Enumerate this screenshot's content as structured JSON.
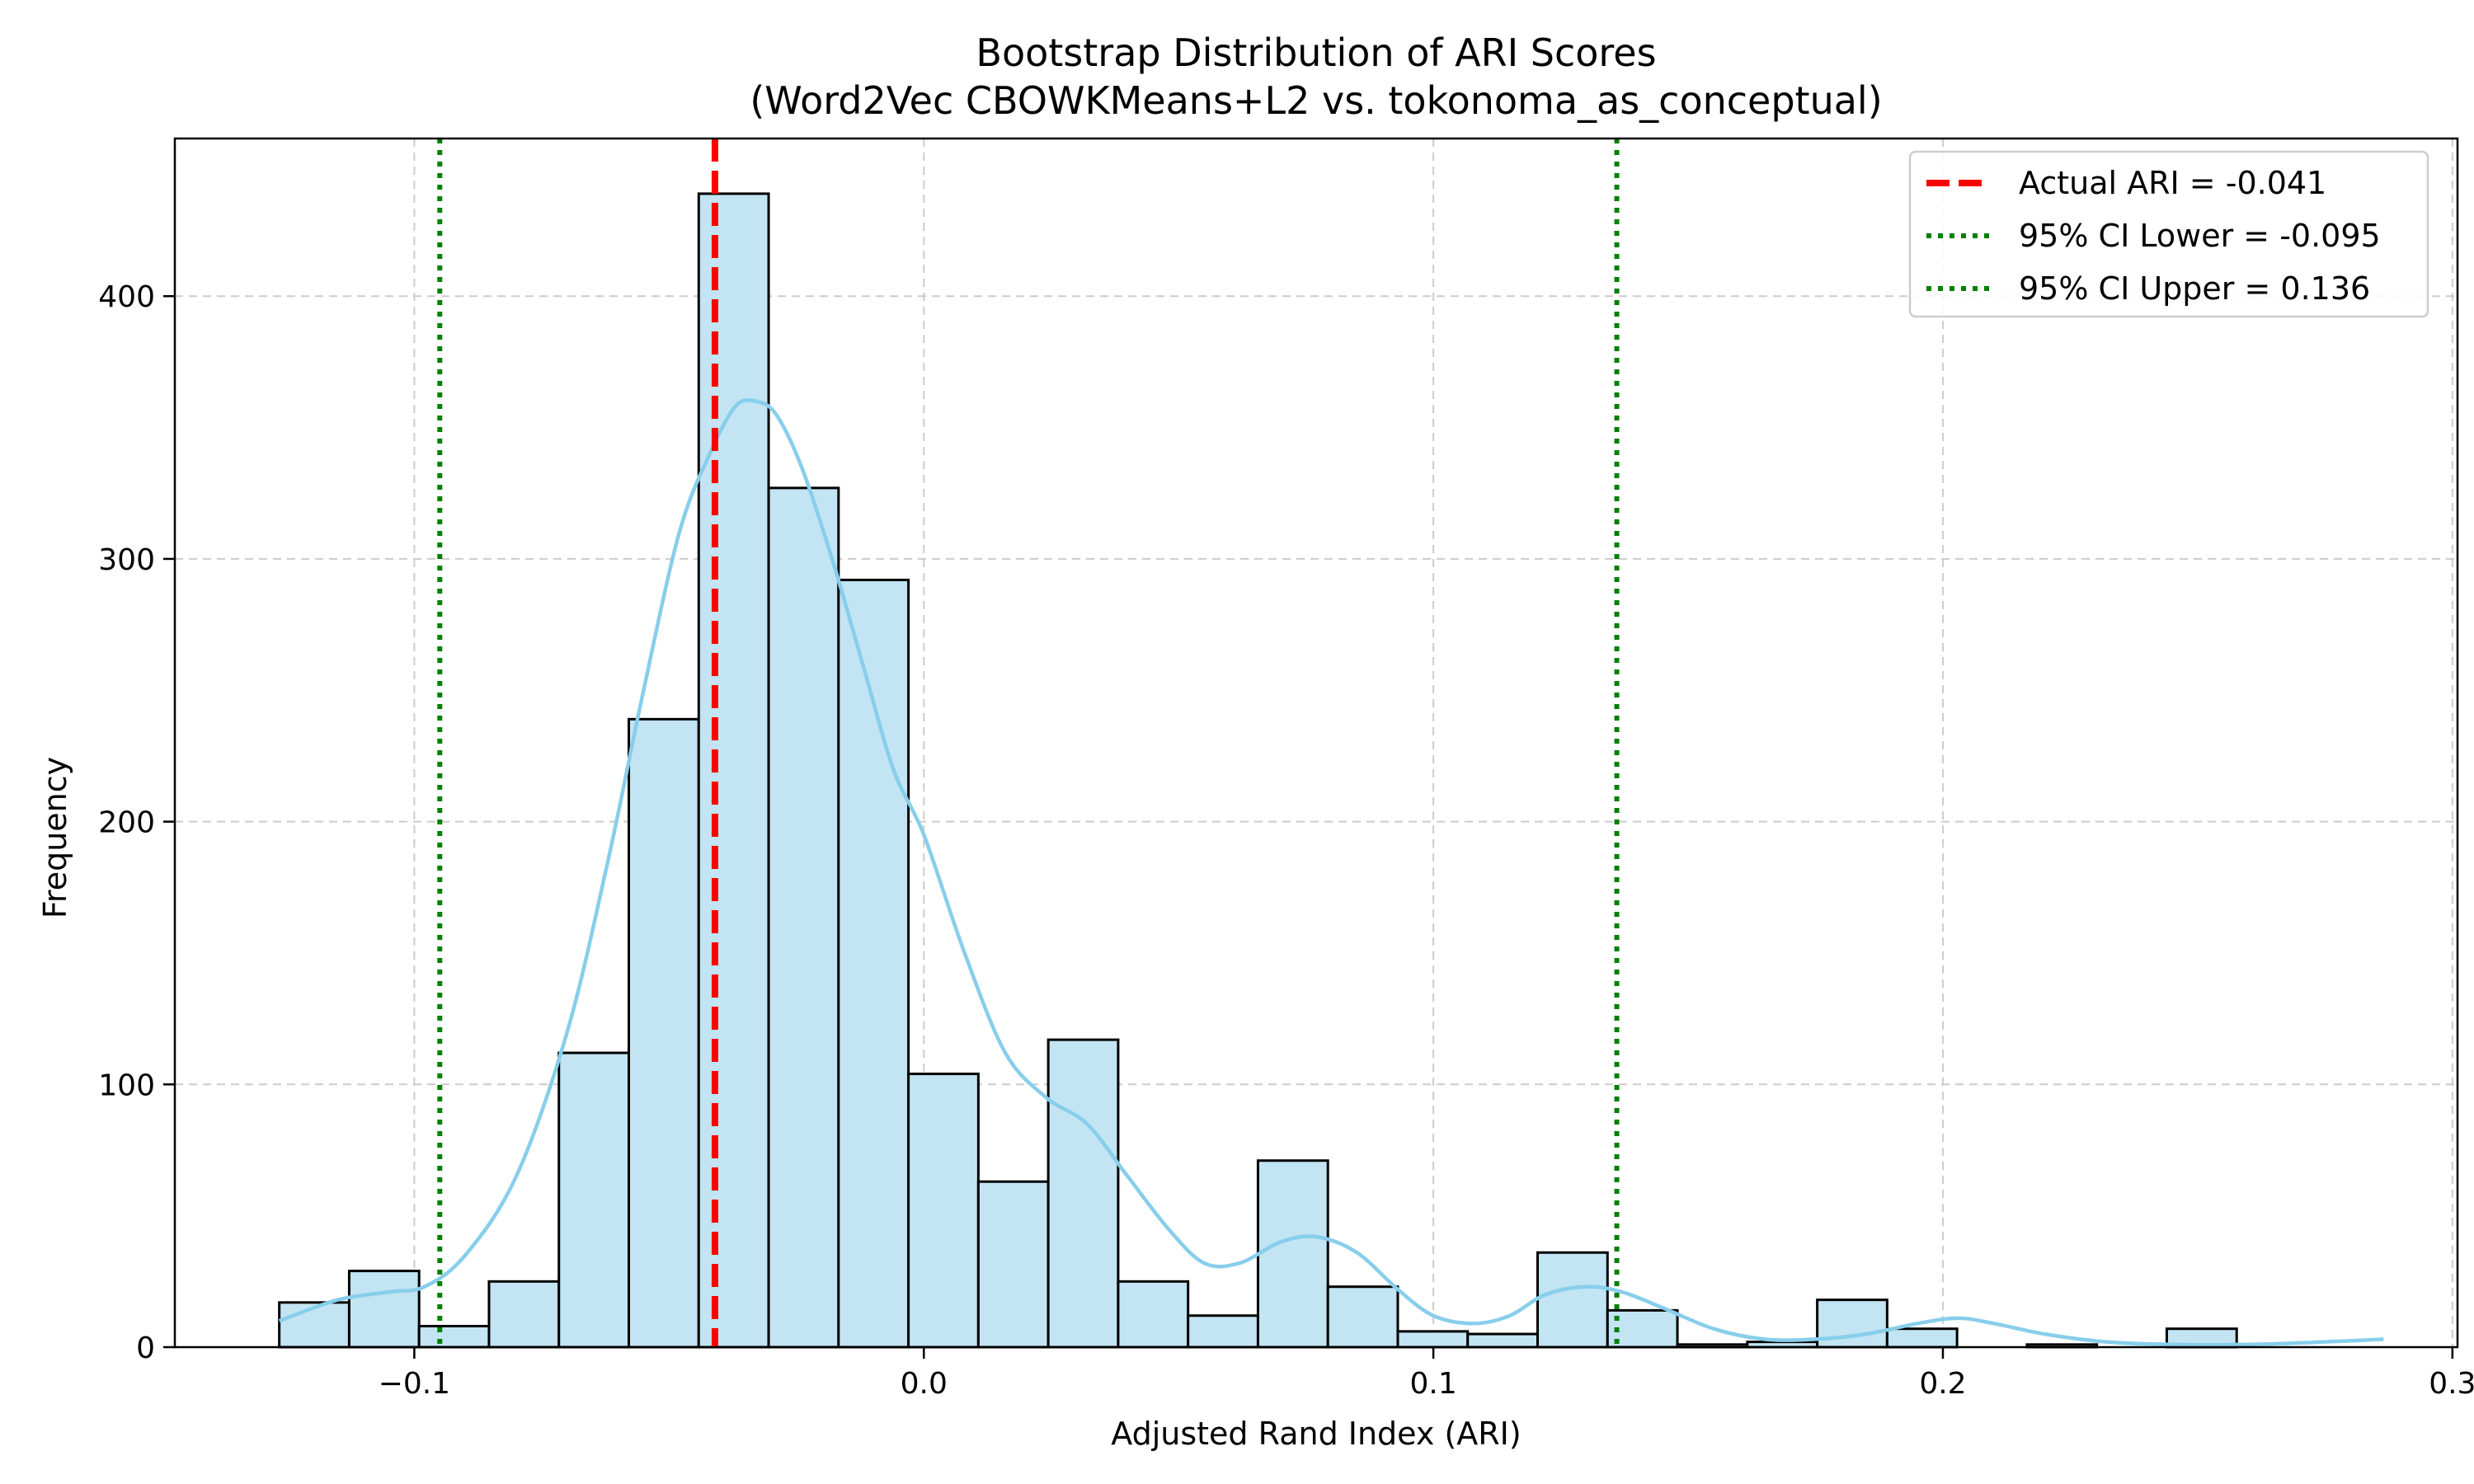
{
  "chart_data": {
    "type": "bar",
    "title": "Bootstrap Distribution of ARI Scores",
    "subtitle": "(Word2Vec CBOWKMeans+L2 vs. tokonoma_as_conceptual)",
    "xlabel": "Adjusted Rand Index (ARI)",
    "ylabel": "Frequency",
    "xlim": [
      -0.147,
      0.301
    ],
    "ylim": [
      0,
      460
    ],
    "xticks": [
      -0.1,
      0.0,
      0.1,
      0.2,
      0.3
    ],
    "xtick_labels": [
      "−0.1",
      "0.0",
      "0.1",
      "0.2",
      "0.3"
    ],
    "yticks": [
      0,
      100,
      200,
      300,
      400
    ],
    "ytick_labels": [
      "0",
      "100",
      "200",
      "300",
      "400"
    ],
    "grid": true,
    "legend_position": "top-right",
    "bins": {
      "start": -0.1265,
      "width": 0.01372,
      "counts": [
        17,
        29,
        8,
        25,
        112,
        239,
        439,
        327,
        292,
        104,
        63,
        117,
        25,
        12,
        71,
        23,
        6,
        5,
        36,
        14,
        1,
        2,
        18,
        7,
        0,
        1,
        0,
        7
      ]
    },
    "kde": {
      "x": [
        -0.1265,
        -0.115,
        -0.105,
        -0.098,
        -0.09,
        -0.08,
        -0.07,
        -0.062,
        -0.055,
        -0.048,
        -0.042,
        -0.037,
        -0.033,
        -0.029,
        -0.024,
        -0.018,
        -0.012,
        -0.006,
        0.0,
        0.008,
        0.016,
        0.024,
        0.032,
        0.04,
        0.048,
        0.055,
        0.062,
        0.07,
        0.077,
        0.085,
        0.093,
        0.1,
        0.108,
        0.115,
        0.122,
        0.13,
        0.137,
        0.145,
        0.155,
        0.165,
        0.175,
        0.185,
        0.195,
        0.203,
        0.21,
        0.22,
        0.232,
        0.245,
        0.26,
        0.275,
        0.2865
      ],
      "y": [
        10,
        18,
        21,
        23,
        35,
        65,
        120,
        185,
        250,
        310,
        340,
        358,
        360,
        355,
        335,
        300,
        260,
        220,
        195,
        150,
        112,
        95,
        85,
        65,
        45,
        32,
        32,
        40,
        42,
        36,
        22,
        12,
        9,
        12,
        20,
        23,
        21,
        15,
        7,
        3,
        3,
        5,
        9,
        11,
        9,
        5,
        2,
        1,
        1,
        2,
        3
      ]
    },
    "vlines": [
      {
        "x": -0.041,
        "label": "Actual ARI = -0.041",
        "style": "dashed",
        "color": "#ff0000"
      },
      {
        "x": -0.095,
        "label": "95% CI Lower = -0.095",
        "style": "dotted",
        "color": "#008000"
      },
      {
        "x": 0.136,
        "label": "95% CI Upper = 0.136",
        "style": "dotted",
        "color": "#008000"
      }
    ],
    "colors": {
      "bar_fill": "#c2e4f3",
      "bar_edge": "#000000",
      "kde_line": "#87ceeb",
      "grid": "#cccccc"
    }
  }
}
